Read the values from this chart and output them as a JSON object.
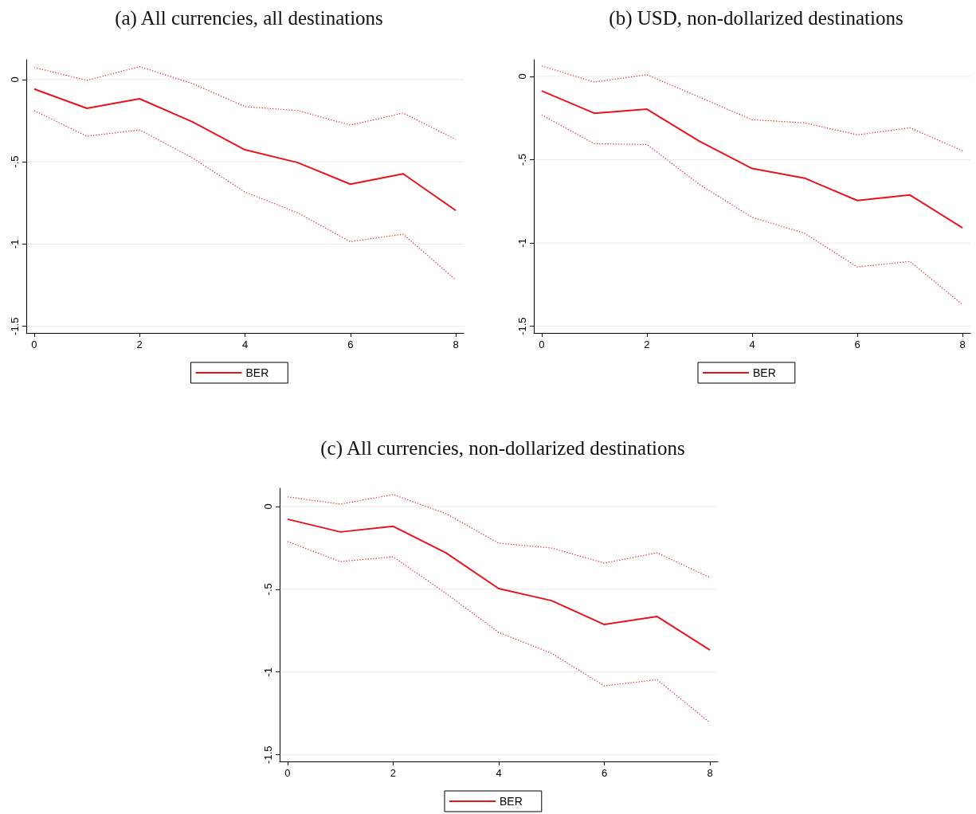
{
  "chart_data": [
    {
      "type": "line",
      "title": "(a) All currencies, all destinations",
      "x": [
        0,
        1,
        2,
        3,
        4,
        5,
        6,
        7,
        8
      ],
      "xlim": [
        -0.15,
        8.15
      ],
      "xticks": [
        0,
        2,
        4,
        6,
        8
      ],
      "ylim": [
        -1.54,
        0.12
      ],
      "yticks": [
        {
          "value": -1.5,
          "label": "-1.5"
        },
        {
          "value": -1,
          "label": "-1"
        },
        {
          "value": -0.5,
          "label": "-.5"
        },
        {
          "value": 0,
          "label": "0"
        }
      ],
      "grid": "y",
      "legend": "bottom",
      "series": [
        {
          "name": "BER",
          "color": "#e8141b",
          "line_style": "solid",
          "values": [
            -0.058,
            -0.175,
            -0.117,
            -0.257,
            -0.427,
            -0.505,
            -0.636,
            -0.573,
            -0.796
          ]
        },
        {
          "color": "#e8141b",
          "line_style": "dotted",
          "values": [
            0.073,
            -0.005,
            0.078,
            -0.024,
            -0.165,
            -0.189,
            -0.277,
            -0.204,
            -0.364
          ]
        },
        {
          "color": "#e8141b",
          "line_style": "dotted",
          "values": [
            -0.189,
            -0.345,
            -0.306,
            -0.476,
            -0.684,
            -0.81,
            -0.985,
            -0.94,
            -1.218
          ]
        }
      ]
    },
    {
      "type": "line",
      "title": "(b) USD, non-dollarized destinations",
      "x": [
        0,
        1,
        2,
        3,
        4,
        5,
        6,
        7,
        8
      ],
      "xlim": [
        -0.15,
        8.15
      ],
      "xticks": [
        0,
        2,
        4,
        6,
        8
      ],
      "ylim": [
        -1.54,
        0.1
      ],
      "yticks": [
        {
          "value": -1.5,
          "label": "-1.5"
        },
        {
          "value": -1,
          "label": "-1"
        },
        {
          "value": -0.5,
          "label": "-.5"
        },
        {
          "value": 0,
          "label": "0"
        }
      ],
      "grid": "y",
      "legend": "bottom",
      "series": [
        {
          "name": "BER",
          "color": "#e8141b",
          "line_style": "solid",
          "values": [
            -0.087,
            -0.221,
            -0.197,
            -0.389,
            -0.553,
            -0.611,
            -0.745,
            -0.712,
            -0.909
          ]
        },
        {
          "color": "#e8141b",
          "line_style": "dotted",
          "values": [
            0.063,
            -0.034,
            0.01,
            -0.125,
            -0.26,
            -0.279,
            -0.351,
            -0.308,
            -0.447
          ]
        },
        {
          "color": "#e8141b",
          "line_style": "dotted",
          "values": [
            -0.231,
            -0.404,
            -0.409,
            -0.649,
            -0.846,
            -0.942,
            -1.144,
            -1.111,
            -1.37
          ]
        }
      ]
    },
    {
      "type": "line",
      "title": "(c) All currencies, non-dollarized destinations",
      "x": [
        0,
        1,
        2,
        3,
        4,
        5,
        6,
        7,
        8
      ],
      "xlim": [
        -0.15,
        8.15
      ],
      "xticks": [
        0,
        2,
        4,
        6,
        8
      ],
      "ylim": [
        -1.54,
        0.11
      ],
      "yticks": [
        {
          "value": -1.5,
          "label": "-1.5"
        },
        {
          "value": -1,
          "label": "-1"
        },
        {
          "value": -0.5,
          "label": "-.5"
        },
        {
          "value": 0,
          "label": "0"
        }
      ],
      "grid": "y",
      "legend": "bottom",
      "series": [
        {
          "name": "BER",
          "color": "#e8141b",
          "line_style": "solid",
          "values": [
            -0.077,
            -0.154,
            -0.12,
            -0.28,
            -0.496,
            -0.569,
            -0.713,
            -0.665,
            -0.867
          ]
        },
        {
          "color": "#e8141b",
          "line_style": "dotted",
          "values": [
            0.058,
            0.014,
            0.072,
            -0.043,
            -0.222,
            -0.251,
            -0.342,
            -0.28,
            -0.429
          ]
        },
        {
          "color": "#e8141b",
          "line_style": "dotted",
          "values": [
            -0.212,
            -0.333,
            -0.304,
            -0.525,
            -0.761,
            -0.887,
            -1.084,
            -1.046,
            -1.306
          ]
        }
      ]
    }
  ]
}
